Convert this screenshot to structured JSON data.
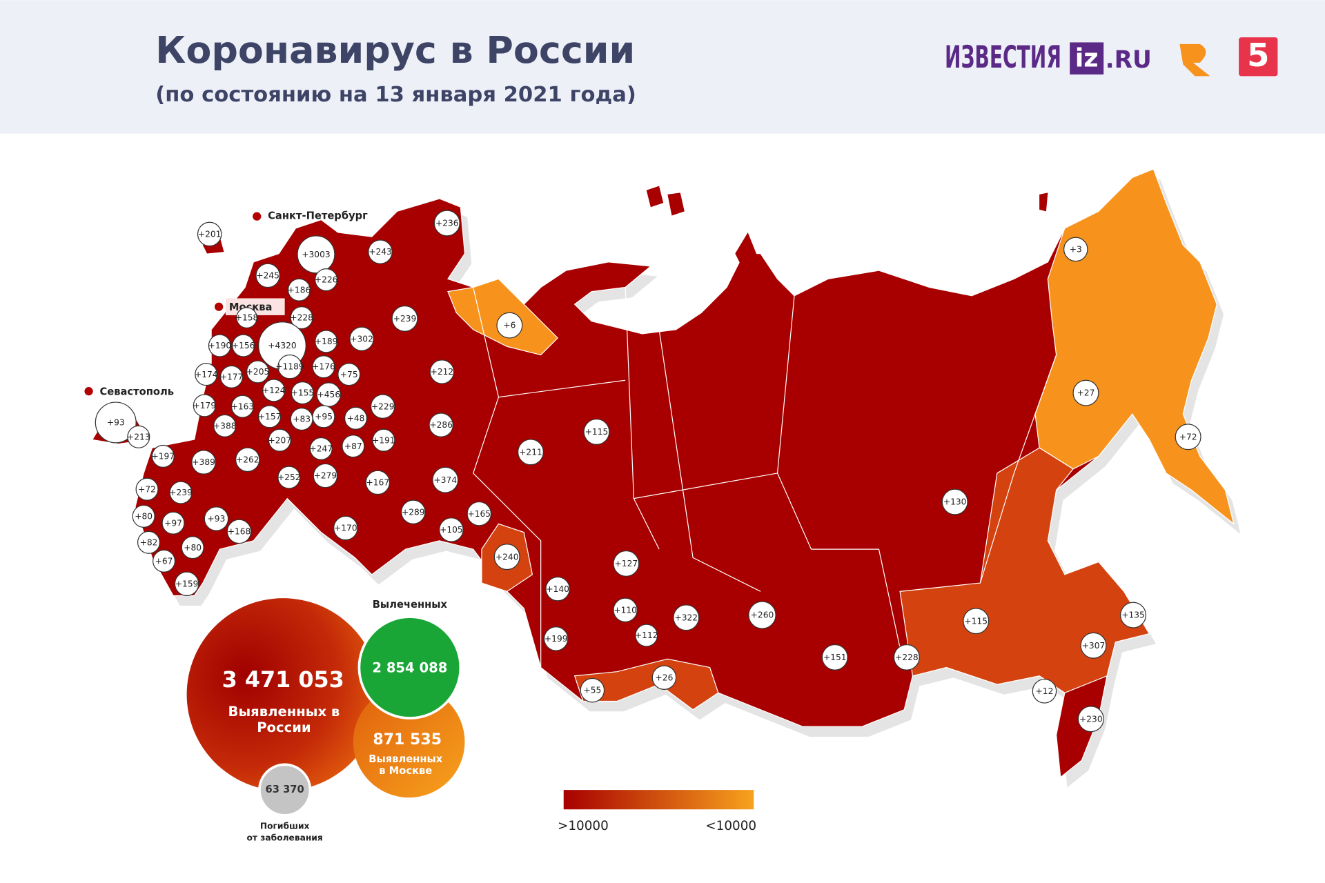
{
  "header": {
    "title": "Коронавирус в России",
    "subtitle": "(по состоянию на 13 января 2021 года)"
  },
  "logos": {
    "izvestia": "ИЗВЕСТИЯ",
    "iz": "iz",
    "ru": ".RU",
    "five": "5"
  },
  "cities": [
    "Санкт-Петербург",
    "Москва",
    "Севастополь"
  ],
  "regions": [
    "+201",
    "+236",
    "+3003",
    "+243",
    "+245",
    "+226",
    "+186",
    "+158",
    "+228",
    "+239",
    "+6",
    "+3",
    "+190",
    "+156",
    "+4320",
    "+189",
    "+302",
    "+1189",
    "+176",
    "+75",
    "+212",
    "+174",
    "+177",
    "+205",
    "+124",
    "+155",
    "+456",
    "+27",
    "+229",
    "+48",
    "+179",
    "+163",
    "+157",
    "+83",
    "+95",
    "+286",
    "+93",
    "+213",
    "+388",
    "+207",
    "+247",
    "+87",
    "+191",
    "+115",
    "+211",
    "+72",
    "+197",
    "+389",
    "+262",
    "+252",
    "+279",
    "+167",
    "+374",
    "+72",
    "+239",
    "+93",
    "+289",
    "+165",
    "+130",
    "+80",
    "+97",
    "+168",
    "+170",
    "+105",
    "+82",
    "+80",
    "+240",
    "+67",
    "+127",
    "+159",
    "+140",
    "+110",
    "+135",
    "+260",
    "+322",
    "+112",
    "+115",
    "+199",
    "+228",
    "+151",
    "+307",
    "+26",
    "+55",
    "+12",
    "+230"
  ],
  "stats": {
    "cases": "3 471 053",
    "cases_caption": [
      "Выявленных в",
      "России"
    ],
    "recovered_title": "Вылеченных",
    "recovered": "2 854 088",
    "moscow": "871 535",
    "moscow_caption": [
      "Выявленных",
      "в Москве"
    ],
    "deaths": "63 370",
    "deaths_caption": [
      "Погибших",
      "от заболевания"
    ]
  },
  "legend": {
    "high": ">10000",
    "low": "<10000"
  }
}
